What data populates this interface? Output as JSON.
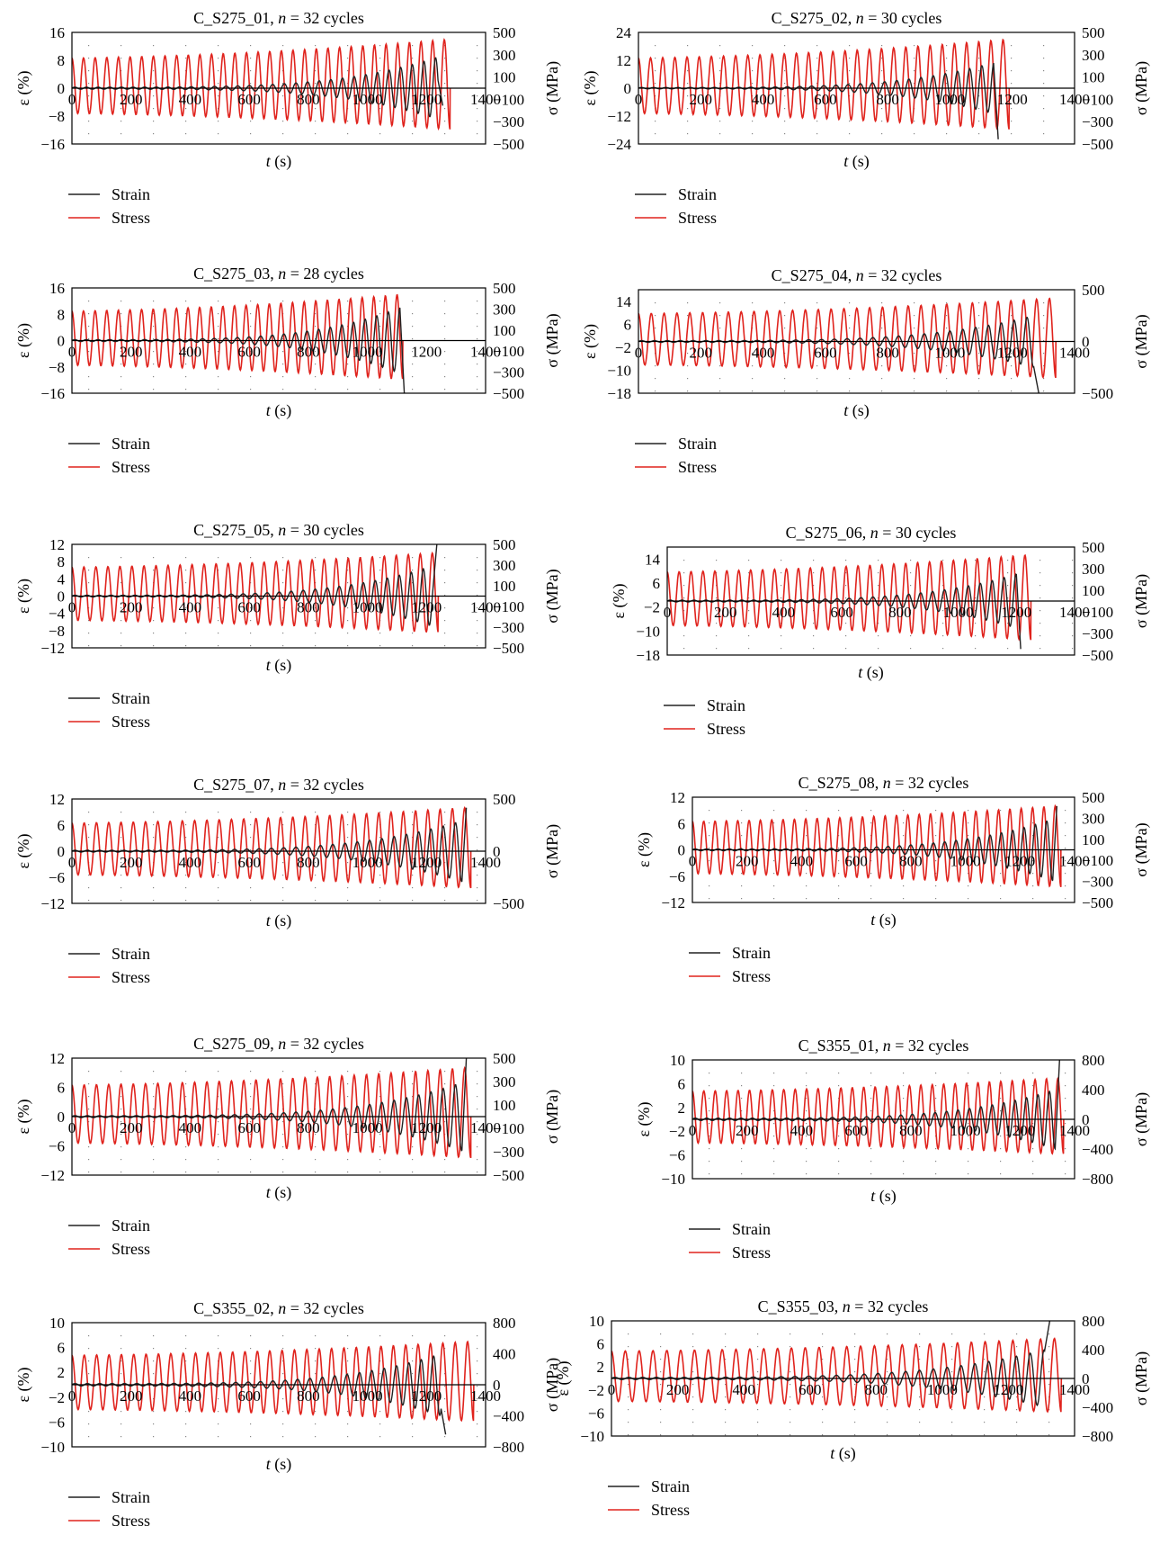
{
  "page": {
    "background": "#ffffff"
  },
  "colors": {
    "strain": "#222222",
    "stress": "#e0231d",
    "axis": "#000000",
    "grid": "#888888"
  },
  "chart_data": [
    {
      "id": "C_S275_01",
      "type": "line",
      "title_prefix": "C_S275_01, ",
      "title_var": "n",
      "title_suffix": " = 32 cycles",
      "cycles": 32,
      "xlabel_var": "t",
      "xlabel_unit": " (s)",
      "ylabel": "ε (%)",
      "y2label": "σ (MPa)",
      "xticks": [
        0,
        200,
        400,
        600,
        800,
        1000,
        1200,
        1400
      ],
      "xlim": [
        0,
        1400
      ],
      "yticks": [
        16,
        8,
        0,
        -8,
        -16
      ],
      "ylim": [
        -16,
        16
      ],
      "y2ticks": [
        500,
        300,
        100,
        -100,
        -300,
        -500
      ],
      "y2lim": [
        -500,
        500
      ],
      "stress_amp_start": 270,
      "stress_amp_end": 440,
      "stress_end_t": 1280,
      "strain_amp_start": 0.3,
      "strain_amp_end": 9,
      "strain_end_t": 1240,
      "failure_strain": -5,
      "series": [
        {
          "name": "Strain"
        },
        {
          "name": "Stress"
        }
      ]
    },
    {
      "id": "C_S275_02",
      "type": "line",
      "title_prefix": "C_S275_02, ",
      "title_var": "n",
      "title_suffix": " = 30 cycles",
      "cycles": 30,
      "xlabel_var": "t",
      "xlabel_unit": " (s)",
      "ylabel": "ε (%)",
      "y2label": "σ (MPa)",
      "xticks": [
        0,
        200,
        400,
        600,
        800,
        1000,
        1200,
        1400
      ],
      "xlim": [
        0,
        1400
      ],
      "yticks": [
        24,
        12,
        0,
        -12,
        -24
      ],
      "ylim": [
        -24,
        24
      ],
      "y2ticks": [
        500,
        300,
        100,
        -100,
        -300,
        -500
      ],
      "y2lim": [
        -500,
        500
      ],
      "stress_amp_start": 270,
      "stress_amp_end": 440,
      "stress_end_t": 1190,
      "strain_amp_start": 0.3,
      "strain_amp_end": 11,
      "strain_end_t": 1140,
      "failure_strain": -22,
      "series": [
        {
          "name": "Strain"
        },
        {
          "name": "Stress"
        }
      ]
    },
    {
      "id": "C_S275_03",
      "type": "line",
      "title_prefix": "C_S275_03, ",
      "title_var": "n",
      "title_suffix": " = 28 cycles",
      "cycles": 28,
      "xlabel_var": "t",
      "xlabel_unit": " (s)",
      "ylabel": "ε (%)",
      "y2label": "σ (MPa)",
      "xticks": [
        0,
        200,
        400,
        600,
        800,
        1000,
        1200,
        1400
      ],
      "xlim": [
        0,
        1400
      ],
      "yticks": [
        16,
        8,
        0,
        -8,
        -16
      ],
      "ylim": [
        -16,
        16
      ],
      "y2ticks": [
        500,
        300,
        100,
        -100,
        -300,
        -500
      ],
      "y2lim": [
        -500,
        500
      ],
      "stress_amp_start": 280,
      "stress_amp_end": 440,
      "stress_end_t": 1120,
      "strain_amp_start": 0.3,
      "strain_amp_end": 10,
      "strain_end_t": 1110,
      "failure_strain": -16,
      "series": [
        {
          "name": "Strain"
        },
        {
          "name": "Stress"
        }
      ]
    },
    {
      "id": "C_S275_04",
      "type": "line",
      "title_prefix": "C_S275_04, ",
      "title_var": "n",
      "title_suffix": " = 32 cycles",
      "cycles": 32,
      "xlabel_var": "t",
      "xlabel_unit": " (s)",
      "ylabel": "ε (%)",
      "y2label": "σ (MPa)",
      "xticks": [
        0,
        200,
        400,
        600,
        800,
        1000,
        1200,
        1400
      ],
      "xlim": [
        0,
        1400
      ],
      "yticks": [
        14,
        6,
        -2,
        -10,
        -18
      ],
      "ylim": [
        -18,
        18
      ],
      "y2ticks": [
        500,
        0,
        -500
      ],
      "y2lim": [
        -500,
        500
      ],
      "stress_amp_start": 270,
      "stress_amp_end": 420,
      "stress_end_t": 1340,
      "strain_amp_start": 0.3,
      "strain_amp_end": 9,
      "strain_end_t": 1270,
      "failure_strain": -18,
      "series": [
        {
          "name": "Strain"
        },
        {
          "name": "Stress"
        }
      ]
    },
    {
      "id": "C_S275_05",
      "type": "line",
      "title_prefix": "C_S275_05, ",
      "title_var": "n",
      "title_suffix": " = 30 cycles",
      "cycles": 30,
      "xlabel_var": "t",
      "xlabel_unit": " (s)",
      "ylabel": "ε (%)",
      "y2label": "σ (MPa)",
      "xticks": [
        0,
        200,
        400,
        600,
        800,
        1000,
        1200,
        1400
      ],
      "xlim": [
        0,
        1400
      ],
      "yticks": [
        12,
        8,
        4,
        0,
        -4,
        -8,
        -12
      ],
      "ylim": [
        -12,
        12
      ],
      "y2ticks": [
        500,
        300,
        100,
        -100,
        -300,
        -500
      ],
      "y2lim": [
        -500,
        500
      ],
      "stress_amp_start": 280,
      "stress_amp_end": 420,
      "stress_end_t": 1240,
      "strain_amp_start": 0.2,
      "strain_amp_end": 7,
      "strain_end_t": 1220,
      "failure_strain": 12,
      "series": [
        {
          "name": "Strain"
        },
        {
          "name": "Stress"
        }
      ]
    },
    {
      "id": "C_S275_06",
      "type": "line",
      "title_prefix": "C_S275_06, ",
      "title_var": "n",
      "title_suffix": " = 30 cycles",
      "cycles": 30,
      "xlabel_var": "t",
      "xlabel_unit": " (s)",
      "ylabel": "ε (%)",
      "y2label": "σ (MPa)",
      "xticks": [
        0,
        200,
        400,
        600,
        800,
        1000,
        1200,
        1400
      ],
      "xlim": [
        0,
        1400
      ],
      "yticks": [
        14,
        6,
        -2,
        -10,
        -18
      ],
      "ylim": [
        -18,
        18
      ],
      "y2ticks": [
        500,
        300,
        100,
        -100,
        -300,
        -500
      ],
      "y2lim": [
        -500,
        500
      ],
      "stress_amp_start": 270,
      "stress_amp_end": 430,
      "stress_end_t": 1250,
      "strain_amp_start": 0.3,
      "strain_amp_end": 9,
      "strain_end_t": 1200,
      "failure_strain": -16,
      "series": [
        {
          "name": "Strain"
        },
        {
          "name": "Stress"
        }
      ]
    },
    {
      "id": "C_S275_07",
      "type": "line",
      "title_prefix": "C_S275_07, ",
      "title_var": "n",
      "title_suffix": " = 32 cycles",
      "cycles": 32,
      "xlabel_var": "t",
      "xlabel_unit": " (s)",
      "ylabel": "ε (%)",
      "y2label": "σ (MPa)",
      "xticks": [
        0,
        200,
        400,
        600,
        800,
        1000,
        1200,
        1400
      ],
      "xlim": [
        0,
        1400
      ],
      "yticks": [
        12,
        6,
        0,
        -6,
        -12
      ],
      "ylim": [
        -12,
        12
      ],
      "y2ticks": [
        500,
        0,
        -500
      ],
      "y2lim": [
        -500,
        500
      ],
      "stress_amp_start": 270,
      "stress_amp_end": 420,
      "stress_end_t": 1350,
      "strain_amp_start": 0.2,
      "strain_amp_end": 7,
      "strain_end_t": 1320,
      "failure_strain": 10,
      "series": [
        {
          "name": "Strain"
        },
        {
          "name": "Stress"
        }
      ]
    },
    {
      "id": "C_S275_08",
      "type": "line",
      "title_prefix": "C_S275_08, ",
      "title_var": "n",
      "title_suffix": " = 32 cycles",
      "cycles": 32,
      "xlabel_var": "t",
      "xlabel_unit": " (s)",
      "ylabel": "ε (%)",
      "y2label": "σ (MPa)",
      "xticks": [
        0,
        200,
        400,
        600,
        800,
        1000,
        1200,
        1400
      ],
      "xlim": [
        0,
        1400
      ],
      "yticks": [
        12,
        6,
        0,
        -6,
        -12
      ],
      "ylim": [
        -12,
        12
      ],
      "y2ticks": [
        500,
        300,
        100,
        -100,
        -300,
        -500
      ],
      "y2lim": [
        -500,
        500
      ],
      "stress_amp_start": 270,
      "stress_amp_end": 420,
      "stress_end_t": 1350,
      "strain_amp_start": 0.2,
      "strain_amp_end": 7,
      "strain_end_t": 1320,
      "failure_strain": 10,
      "series": [
        {
          "name": "Strain"
        },
        {
          "name": "Stress"
        }
      ]
    },
    {
      "id": "C_S275_09",
      "type": "line",
      "title_prefix": "C_S275_09, ",
      "title_var": "n",
      "title_suffix": " = 32 cycles",
      "cycles": 32,
      "xlabel_var": "t",
      "xlabel_unit": " (s)",
      "ylabel": "ε (%)",
      "y2label": "σ (MPa)",
      "xticks": [
        0,
        200,
        400,
        600,
        800,
        1000,
        1200,
        1400
      ],
      "xlim": [
        0,
        1400
      ],
      "yticks": [
        12,
        6,
        0,
        -6,
        -12
      ],
      "ylim": [
        -12,
        12
      ],
      "y2ticks": [
        500,
        300,
        100,
        -100,
        -300,
        -500
      ],
      "y2lim": [
        -500,
        500
      ],
      "stress_amp_start": 270,
      "stress_amp_end": 420,
      "stress_end_t": 1350,
      "strain_amp_start": 0.2,
      "strain_amp_end": 7,
      "strain_end_t": 1320,
      "failure_strain": 12,
      "series": [
        {
          "name": "Strain"
        },
        {
          "name": "Stress"
        }
      ]
    },
    {
      "id": "C_S355_01",
      "type": "line",
      "title_prefix": "C_S355_01, ",
      "title_var": "n",
      "title_suffix": " = 32 cycles",
      "cycles": 32,
      "xlabel_var": "t",
      "xlabel_unit": " (s)",
      "ylabel": "ε (%)",
      "y2label": "σ (MPa)",
      "xticks": [
        0,
        200,
        400,
        600,
        800,
        1000,
        1200,
        1400
      ],
      "xlim": [
        0,
        1400
      ],
      "yticks": [
        10,
        6,
        2,
        -2,
        -6,
        -10
      ],
      "ylim": [
        -10,
        10
      ],
      "y2ticks": [
        800,
        400,
        0,
        -400,
        -800
      ],
      "y2lim": [
        -800,
        800
      ],
      "stress_amp_start": 380,
      "stress_amp_end": 560,
      "stress_end_t": 1360,
      "strain_amp_start": 0.2,
      "strain_amp_end": 5,
      "strain_end_t": 1330,
      "failure_strain": 10,
      "series": [
        {
          "name": "Strain"
        },
        {
          "name": "Stress"
        }
      ]
    },
    {
      "id": "C_S355_02",
      "type": "line",
      "title_prefix": "C_S355_02, ",
      "title_var": "n",
      "title_suffix": " = 32 cycles",
      "cycles": 32,
      "xlabel_var": "t",
      "xlabel_unit": " (s)",
      "ylabel": "ε (%)",
      "y2label": "σ (MPa)",
      "xticks": [
        0,
        200,
        400,
        600,
        800,
        1000,
        1200,
        1400
      ],
      "xlim": [
        0,
        1400
      ],
      "yticks": [
        10,
        6,
        2,
        -2,
        -6,
        -10
      ],
      "ylim": [
        -10,
        10
      ],
      "y2ticks": [
        800,
        400,
        0,
        -400,
        -800
      ],
      "y2lim": [
        -800,
        800
      ],
      "stress_amp_start": 380,
      "stress_amp_end": 560,
      "stress_end_t": 1360,
      "strain_amp_start": 0.2,
      "strain_amp_end": 5,
      "strain_end_t": 1250,
      "failure_strain": -8,
      "series": [
        {
          "name": "Strain"
        },
        {
          "name": "Stress"
        }
      ]
    },
    {
      "id": "C_S355_03",
      "type": "line",
      "title_prefix": "C_S355_03, ",
      "title_var": "n",
      "title_suffix": " = 32 cycles",
      "cycles": 32,
      "xlabel_var": "t",
      "xlabel_unit": " (s)",
      "ylabel": "ε (%)",
      "y2label": "σ (MPa)",
      "xticks": [
        0,
        200,
        400,
        600,
        800,
        1000,
        1200,
        1400
      ],
      "xlim": [
        0,
        1400
      ],
      "yticks": [
        10,
        6,
        2,
        -2,
        -6,
        -10
      ],
      "ylim": [
        -10,
        10
      ],
      "y2ticks": [
        800,
        400,
        0,
        -400,
        -800
      ],
      "y2lim": [
        -800,
        800
      ],
      "stress_amp_start": 380,
      "stress_amp_end": 560,
      "stress_end_t": 1360,
      "strain_amp_start": 0.2,
      "strain_amp_end": 5,
      "strain_end_t": 1310,
      "failure_strain": 10,
      "series": [
        {
          "name": "Strain"
        },
        {
          "name": "Stress"
        }
      ]
    }
  ]
}
